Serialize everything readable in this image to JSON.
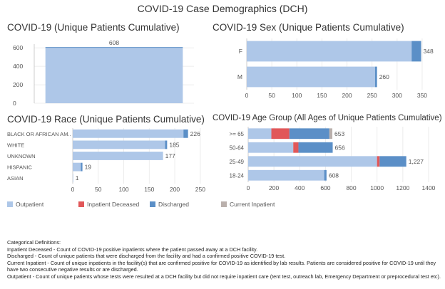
{
  "main_title": "COVID-19 Case Demographics (DCH)",
  "colors": {
    "outpatient": "#aec7e8",
    "inpatient_deceased": "#e15759",
    "discharged": "#5b8fc7",
    "current_inpatient": "#bab0ac"
  },
  "legend": {
    "outpatient": "Outpatient",
    "inpatient_deceased": "Inpatient Deceased",
    "discharged": "Discharged",
    "current_inpatient": "Current Inpatient"
  },
  "definitions": {
    "heading": "Categorical Definitions:",
    "inpatient_deceased": "Inpatient Deceased - Count of COVID-19 positive inpatients where the patient passed away at a DCH facility.",
    "discharged": "Discharged - Count of unique patients that were discharged from the facility and had a confirmed positive COVID-19 test.",
    "current_inpatient": "Current Inpatient - Count of unique inpatients in the facility(s) that are confirmed positive for COVID-19 as identified by lab results. Patients are considered positive for COVID-19 until they have two consecutive negative results or are discharged.",
    "outpatient": "Outpatient - Count of unique patients whose tests were resulted at a DCH facility but did not require inpatient care (tent test, outreach lab, Emergency Department or preprocedural test etc)."
  },
  "chart_data": [
    {
      "id": "cumulative",
      "type": "bar",
      "orientation": "vertical",
      "title": "COVID-19 (Unique Patients Cumulative)",
      "categories": [
        ""
      ],
      "series": [
        {
          "name": "Outpatient",
          "values": [
            600
          ]
        },
        {
          "name": "Discharged",
          "values": [
            8
          ]
        }
      ],
      "totals": [
        "608"
      ],
      "ylim": [
        0,
        640
      ],
      "yticks": [
        "0",
        "200",
        "400",
        "600"
      ]
    },
    {
      "id": "sex",
      "type": "bar",
      "orientation": "horizontal",
      "title": "COVID-19 Sex (Unique Patients Cumulative)",
      "categories": [
        "F",
        "M"
      ],
      "series": [
        {
          "name": "Outpatient",
          "values": [
            329,
            256
          ]
        },
        {
          "name": "Discharged",
          "values": [
            19,
            4
          ]
        }
      ],
      "totals": [
        "348",
        "260"
      ],
      "xlim": [
        0,
        370
      ],
      "xticks": [
        "0",
        "50",
        "100",
        "150",
        "200",
        "250",
        "300",
        "350"
      ]
    },
    {
      "id": "race",
      "type": "bar",
      "orientation": "horizontal",
      "title": "COVID-19 Race (Unique Patients Cumulative)",
      "categories": [
        "BLACK OR AFRICAN AM..",
        "WHITE",
        "UNKNOWN",
        "HISPANIC",
        "ASIAN"
      ],
      "series": [
        {
          "name": "Outpatient",
          "values": [
            217,
            181,
            177,
            16,
            1
          ]
        },
        {
          "name": "Discharged",
          "values": [
            9,
            4,
            0,
            3,
            0
          ]
        }
      ],
      "totals": [
        "226",
        "185",
        "177",
        "19",
        "1"
      ],
      "xlim": [
        0,
        260
      ],
      "xticks": [
        "0",
        "50",
        "100",
        "150",
        "200",
        "250"
      ]
    },
    {
      "id": "age",
      "type": "bar",
      "orientation": "horizontal",
      "title": "COVID-19 Age Group (All Ages of Unique Patients Cumulative)",
      "categories": [
        ">= 65",
        "50-64",
        "25-49",
        "18-24"
      ],
      "series": [
        {
          "name": "Outpatient",
          "values": [
            180,
            350,
            1000,
            590
          ]
        },
        {
          "name": "Inpatient Deceased",
          "values": [
            140,
            40,
            20,
            0
          ]
        },
        {
          "name": "Discharged",
          "values": [
            310,
            266,
            207,
            18
          ]
        },
        {
          "name": "Current Inpatient",
          "values": [
            23,
            0,
            0,
            0
          ]
        }
      ],
      "totals": [
        "653",
        "656",
        "1,227",
        "608"
      ],
      "xlim": [
        0,
        1450
      ],
      "xticks": [
        "0",
        "200",
        "400",
        "600",
        "800",
        "1000",
        "1200",
        "1400"
      ]
    }
  ]
}
